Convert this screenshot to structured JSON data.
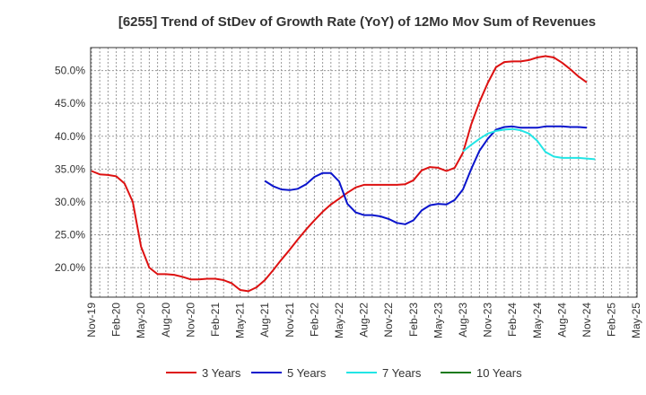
{
  "chart_data": {
    "type": "line",
    "title": "[6255]  Trend of StDev of Growth Rate (YoY) of 12Mo Mov Sum of Revenues",
    "xlabel": "",
    "ylabel": "",
    "ylim": [
      0.155,
      0.535
    ],
    "y_ticks": [
      0.2,
      0.25,
      0.3,
      0.35,
      0.4,
      0.45,
      0.5
    ],
    "y_tick_labels": [
      "20.0%",
      "25.0%",
      "30.0%",
      "35.0%",
      "40.0%",
      "45.0%",
      "50.0%"
    ],
    "x_tick_labels": [
      "Nov-19",
      "Feb-20",
      "May-20",
      "Aug-20",
      "Nov-20",
      "Feb-21",
      "May-21",
      "Aug-21",
      "Nov-21",
      "Feb-22",
      "May-22",
      "Aug-22",
      "Nov-22",
      "Feb-23",
      "May-23",
      "Aug-23",
      "Nov-23",
      "Feb-24",
      "May-24",
      "Aug-24",
      "Nov-24",
      "Feb-25",
      "May-25"
    ],
    "x_count": 67,
    "grid": true,
    "legend_position": "bottom",
    "series": [
      {
        "name": "3 Years",
        "color": "#dd1111",
        "start_index": 0,
        "values": [
          0.347,
          0.342,
          0.341,
          0.339,
          0.328,
          0.3,
          0.232,
          0.2,
          0.19,
          0.19,
          0.189,
          0.186,
          0.182,
          0.182,
          0.183,
          0.183,
          0.181,
          0.176,
          0.166,
          0.164,
          0.17,
          0.181,
          0.196,
          0.212,
          0.227,
          0.243,
          0.258,
          0.272,
          0.285,
          0.296,
          0.305,
          0.314,
          0.322,
          0.326,
          0.326,
          0.326,
          0.326,
          0.326,
          0.327,
          0.333,
          0.348,
          0.353,
          0.352,
          0.347,
          0.352,
          0.375,
          0.418,
          0.452,
          0.481,
          0.505,
          0.513,
          0.514,
          0.514,
          0.516,
          0.52,
          0.522,
          0.52,
          0.512,
          0.502,
          0.491,
          0.482
        ]
      },
      {
        "name": "5 Years",
        "color": "#0a14cc",
        "start_index": 21,
        "values": [
          0.332,
          0.324,
          0.319,
          0.318,
          0.32,
          0.327,
          0.338,
          0.344,
          0.344,
          0.331,
          0.297,
          0.284,
          0.28,
          0.28,
          0.278,
          0.274,
          0.268,
          0.266,
          0.272,
          0.287,
          0.295,
          0.297,
          0.296,
          0.303,
          0.319,
          0.35,
          0.378,
          0.396,
          0.41,
          0.414,
          0.415,
          0.413,
          0.413,
          0.413,
          0.415,
          0.415,
          0.415,
          0.414,
          0.414,
          0.413
        ]
      },
      {
        "name": "7 Years",
        "color": "#22e5e5",
        "start_index": 45,
        "values": [
          0.377,
          0.387,
          0.396,
          0.404,
          0.408,
          0.41,
          0.411,
          0.409,
          0.404,
          0.393,
          0.376,
          0.369,
          0.367,
          0.367,
          0.367,
          0.366,
          0.365
        ]
      },
      {
        "name": "10 Years",
        "color": "#1a7a1a",
        "start_index": 0,
        "values": []
      }
    ]
  }
}
